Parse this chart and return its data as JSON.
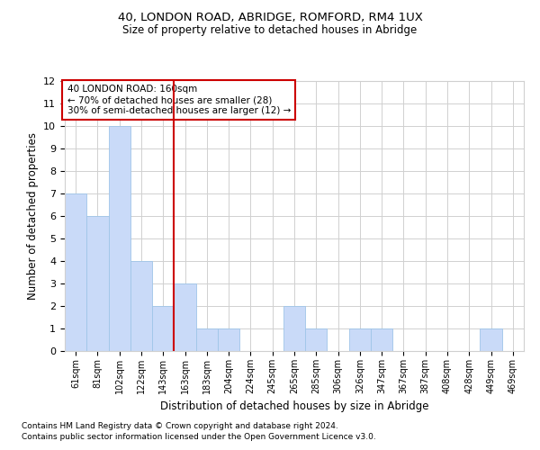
{
  "title1": "40, LONDON ROAD, ABRIDGE, ROMFORD, RM4 1UX",
  "title2": "Size of property relative to detached houses in Abridge",
  "xlabel": "Distribution of detached houses by size in Abridge",
  "ylabel": "Number of detached properties",
  "categories": [
    "61sqm",
    "81sqm",
    "102sqm",
    "122sqm",
    "143sqm",
    "163sqm",
    "183sqm",
    "204sqm",
    "224sqm",
    "245sqm",
    "265sqm",
    "285sqm",
    "306sqm",
    "326sqm",
    "347sqm",
    "367sqm",
    "387sqm",
    "408sqm",
    "428sqm",
    "449sqm",
    "469sqm"
  ],
  "values": [
    7,
    6,
    10,
    4,
    2,
    3,
    1,
    1,
    0,
    0,
    2,
    1,
    0,
    1,
    1,
    0,
    0,
    0,
    0,
    1,
    0
  ],
  "bar_color": "#c9daf8",
  "bar_edgecolor": "#9fc5e8",
  "vline_index": 4.5,
  "vline_color": "#cc0000",
  "annotation_text": "40 LONDON ROAD: 160sqm\n← 70% of detached houses are smaller (28)\n30% of semi-detached houses are larger (12) →",
  "annotation_box_color": "#cc0000",
  "ylim": [
    0,
    12
  ],
  "yticks": [
    0,
    1,
    2,
    3,
    4,
    5,
    6,
    7,
    8,
    9,
    10,
    11,
    12
  ],
  "footnote1": "Contains HM Land Registry data © Crown copyright and database right 2024.",
  "footnote2": "Contains public sector information licensed under the Open Government Licence v3.0.",
  "background_color": "#ffffff",
  "grid_color": "#d0d0d0"
}
